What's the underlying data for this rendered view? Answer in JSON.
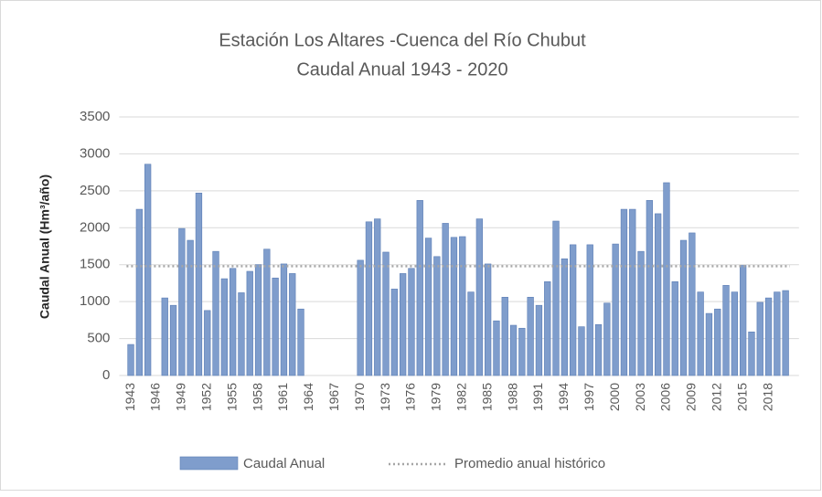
{
  "chart_data": {
    "type": "bar",
    "title": "Estación Los Altares -Cuenca del Río Chubut",
    "subtitle": "Caudal Anual 1943 - 2020",
    "y_label": "Caudal Anual (Hm³/año)",
    "categories": [
      "1943",
      null,
      null,
      "1946",
      null,
      null,
      "1949",
      null,
      null,
      "1952",
      null,
      null,
      "1955",
      null,
      null,
      "1958",
      null,
      null,
      "1961",
      null,
      null,
      "1964",
      null,
      null,
      "1967",
      null,
      null,
      "1970",
      null,
      null,
      "1973",
      null,
      null,
      "1976",
      null,
      null,
      "1979",
      null,
      null,
      "1982",
      null,
      null,
      "1985",
      null,
      null,
      "1988",
      null,
      null,
      "1991",
      null,
      null,
      "1994",
      null,
      null,
      "1997",
      null,
      null,
      "2000",
      null,
      null,
      "2003",
      null,
      null,
      "2006",
      null,
      null,
      "2009",
      null,
      null,
      "2012",
      null,
      null,
      "2015",
      null,
      null,
      "2018",
      null,
      null
    ],
    "series": [
      {
        "name": "Caudal Anual",
        "color": "#7f9dcc",
        "values": [
          420,
          2250,
          2860,
          null,
          1050,
          950,
          1990,
          1830,
          2470,
          880,
          1680,
          1310,
          1450,
          1120,
          1410,
          1500,
          1710,
          1320,
          1510,
          1380,
          900,
          null,
          null,
          null,
          null,
          null,
          null,
          1560,
          2080,
          2120,
          1670,
          1170,
          1380,
          1450,
          2370,
          1860,
          1610,
          2060,
          1870,
          1880,
          1130,
          2120,
          1510,
          740,
          1060,
          680,
          640,
          1060,
          950,
          1270,
          2090,
          1580,
          1770,
          660,
          1770,
          690,
          980,
          1780,
          2250,
          2250,
          1680,
          2370,
          2190,
          2610,
          1270,
          1830,
          1930,
          1130,
          840,
          900,
          1220,
          1130,
          1490,
          590,
          990,
          1050,
          1130,
          1150
        ]
      }
    ],
    "reference_line": {
      "name": "Promedio anual histórico",
      "value": 1480,
      "color": "#a6a6a6"
    },
    "ylim": [
      0,
      3500
    ],
    "yticks": [
      0,
      500,
      1000,
      1500,
      2000,
      2500,
      3000,
      3500
    ],
    "grid": true
  }
}
